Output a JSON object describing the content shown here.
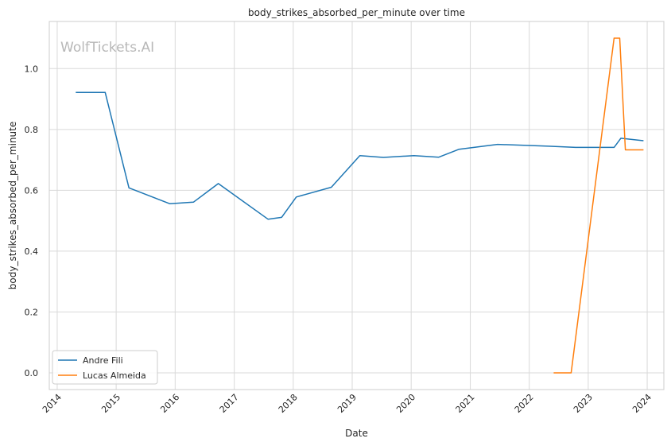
{
  "chart_data": {
    "type": "line",
    "title": "body_strikes_absorbed_per_minute over time",
    "xlabel": "Date",
    "ylabel": "body_strikes_absorbed_per_minute",
    "watermark": "WolfTickets.AI",
    "xlim": [
      "2013-11-13",
      "2024-04-13"
    ],
    "ylim": [
      -0.055,
      1.155
    ],
    "x_ticks": [
      "2014",
      "2015",
      "2016",
      "2017",
      "2018",
      "2019",
      "2020",
      "2021",
      "2022",
      "2023",
      "2024"
    ],
    "y_ticks": [
      "0.0",
      "0.2",
      "0.4",
      "0.6",
      "0.8",
      "1.0"
    ],
    "grid": true,
    "legend_position": "lower-left",
    "series": [
      {
        "name": "Andre Fili",
        "color": "#1f77b4",
        "points": [
          {
            "x": "2014-04-26",
            "y": 0.922
          },
          {
            "x": "2014-10-25",
            "y": 0.922
          },
          {
            "x": "2015-03-21",
            "y": 0.608
          },
          {
            "x": "2015-11-28",
            "y": 0.556
          },
          {
            "x": "2016-04-23",
            "y": 0.561
          },
          {
            "x": "2016-09-24",
            "y": 0.622
          },
          {
            "x": "2017-07-29",
            "y": 0.505
          },
          {
            "x": "2017-10-21",
            "y": 0.511
          },
          {
            "x": "2018-01-20",
            "y": 0.578
          },
          {
            "x": "2018-08-25",
            "y": 0.61
          },
          {
            "x": "2019-02-17",
            "y": 0.714
          },
          {
            "x": "2019-07-13",
            "y": 0.708
          },
          {
            "x": "2020-01-18",
            "y": 0.714
          },
          {
            "x": "2020-06-20",
            "y": 0.709
          },
          {
            "x": "2020-10-24",
            "y": 0.735
          },
          {
            "x": "2021-06-19",
            "y": 0.751
          },
          {
            "x": "2022-04-30",
            "y": 0.745
          },
          {
            "x": "2022-10-15",
            "y": 0.741
          },
          {
            "x": "2023-06-10",
            "y": 0.741
          },
          {
            "x": "2023-07-22",
            "y": 0.771
          },
          {
            "x": "2023-12-09",
            "y": 0.763
          }
        ]
      },
      {
        "name": "Lucas Almeida",
        "color": "#ff7f0e",
        "points": [
          {
            "x": "2022-06-01",
            "y": 0.0
          },
          {
            "x": "2022-09-17",
            "y": 0.0
          },
          {
            "x": "2023-06-10",
            "y": 1.1
          },
          {
            "x": "2023-07-15",
            "y": 1.1
          },
          {
            "x": "2023-08-19",
            "y": 0.733
          },
          {
            "x": "2023-12-09",
            "y": 0.733
          }
        ]
      }
    ]
  }
}
